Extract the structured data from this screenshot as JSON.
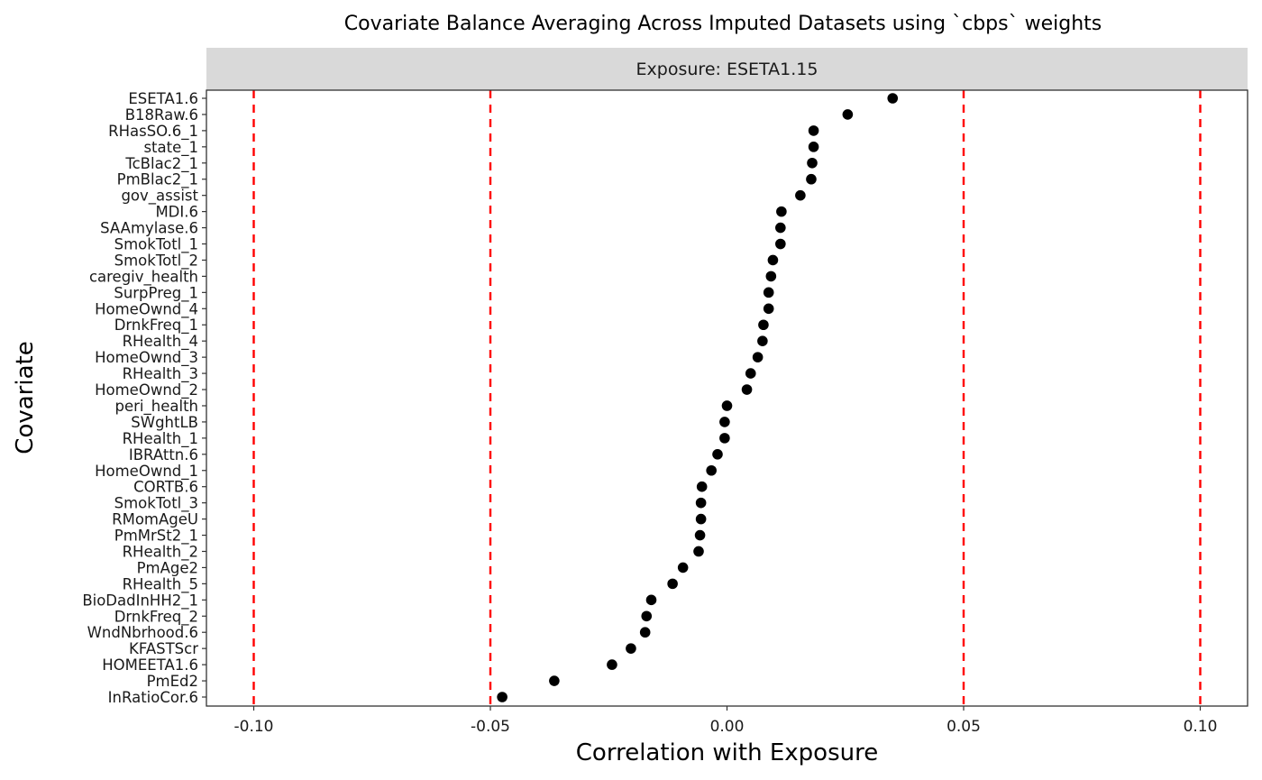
{
  "chart_data": {
    "type": "scatter",
    "title": "Covariate Balance Averaging Across Imputed Datasets using `cbps` weights",
    "facet_label": "Exposure: ESETA1.15",
    "xlabel": "Correlation with Exposure",
    "ylabel": "Covariate",
    "xlim": [
      -0.11,
      0.11
    ],
    "x_ticks": [
      -0.1,
      -0.05,
      0.0,
      0.05,
      0.1
    ],
    "x_tick_labels": [
      "-0.10",
      "-0.05",
      "0.00",
      "0.05",
      "0.10"
    ],
    "reference_lines": [
      -0.1,
      -0.05,
      0.05,
      0.1
    ],
    "reference_line_color": "#ff0000",
    "point_color": "#000000",
    "grid": false,
    "categories": [
      "ESETA1.6",
      "B18Raw.6",
      "RHasSO.6_1",
      "state_1",
      "TcBlac2_1",
      "PmBlac2_1",
      "gov_assist",
      "MDI.6",
      "SAAmylase.6",
      "SmokTotl_1",
      "SmokTotl_2",
      "caregiv_health",
      "SurpPreg_1",
      "HomeOwnd_4",
      "DrnkFreq_1",
      "RHealth_4",
      "HomeOwnd_3",
      "RHealth_3",
      "HomeOwnd_2",
      "peri_health",
      "SWghtLB",
      "RHealth_1",
      "IBRAttn.6",
      "HomeOwnd_1",
      "CORTB.6",
      "SmokTotl_3",
      "RMomAgeU",
      "PmMrSt2_1",
      "RHealth_2",
      "PmAge2",
      "RHealth_5",
      "BioDadInHH2_1",
      "DrnkFreq_2",
      "WndNbrhood.6",
      "KFASTScr",
      "HOMEETA1.6",
      "PmEd2",
      "InRatioCor.6"
    ],
    "values": [
      0.035,
      0.0255,
      0.0183,
      0.0183,
      0.018,
      0.0178,
      0.0155,
      0.0115,
      0.0113,
      0.0113,
      0.0097,
      0.0093,
      0.0088,
      0.0088,
      0.0077,
      0.0075,
      0.0065,
      0.005,
      0.0042,
      0.0,
      -0.0005,
      -0.0005,
      -0.002,
      -0.0033,
      -0.0053,
      -0.0055,
      -0.0055,
      -0.0057,
      -0.006,
      -0.0093,
      -0.0115,
      -0.016,
      -0.017,
      -0.0173,
      -0.0203,
      -0.0243,
      -0.0365,
      -0.0475
    ]
  }
}
